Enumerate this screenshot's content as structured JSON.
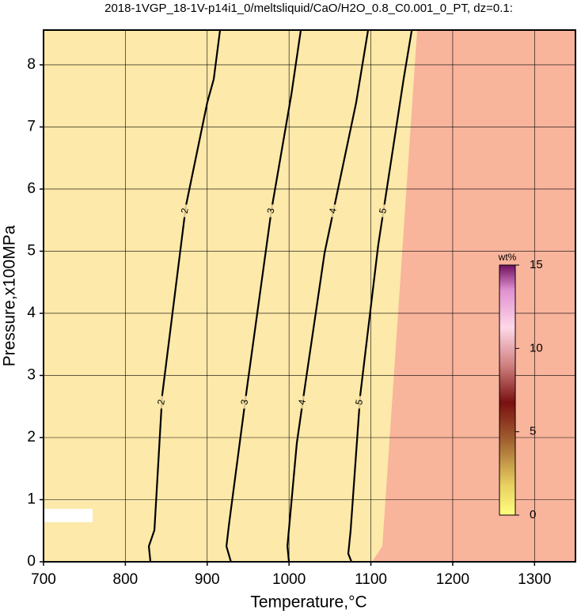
{
  "chart_data": {
    "type": "contour",
    "title": "2018-1VGP_18-1V-p14i1_0/meltsliquid/CaO/H2O_0.8_C0.001_0_PT, dz=0.1:",
    "x_label": "Temperature,°C",
    "y_label": "Pressure,x100MPa",
    "xlim": [
      700,
      1350
    ],
    "ylim": [
      0,
      8.56
    ],
    "xticks": [
      700,
      800,
      900,
      1000,
      1100,
      1200,
      1300
    ],
    "yticks": [
      0,
      1,
      2,
      3,
      4,
      5,
      6,
      7,
      8
    ],
    "grid": true,
    "background_color": "#fde9a9",
    "high_region": {
      "color": "#f9b49c",
      "x": [
        1101.4,
        1114,
        1156.6
      ],
      "y": [
        0,
        0.25,
        8.56
      ]
    },
    "contours": [
      {
        "level": 2,
        "x": [
          830.6,
          828.7,
          835.5,
          845,
          874,
          900,
          908,
          915.7
        ],
        "y": [
          0,
          0.25,
          0.51,
          2.68,
          5.73,
          7.39,
          7.77,
          8.56
        ]
      },
      {
        "level": 3,
        "x": [
          929,
          923.5,
          927,
          948.6,
          978.6,
          1002.8,
          1014.4
        ],
        "y": [
          0,
          0.25,
          0.64,
          2.8,
          5.67,
          7.52,
          8.56
        ]
      },
      {
        "level": 4,
        "x": [
          999.9,
          998,
          1009.5,
          1019.2,
          1043.4,
          1082,
          1096.6
        ],
        "y": [
          0,
          0.25,
          1.91,
          2.8,
          4.97,
          7.39,
          8.56
        ]
      },
      {
        "level": 5,
        "x": [
          1076.3,
          1072.4,
          1075.3,
          1087,
          1109,
          1140,
          1150
        ],
        "y": [
          0,
          0.13,
          0.51,
          2.68,
          5.1,
          7.77,
          8.56
        ]
      }
    ],
    "colorbar": {
      "label": "wt%",
      "lim": [
        0,
        15
      ],
      "ticks": [
        0,
        5,
        10,
        15
      ]
    }
  }
}
